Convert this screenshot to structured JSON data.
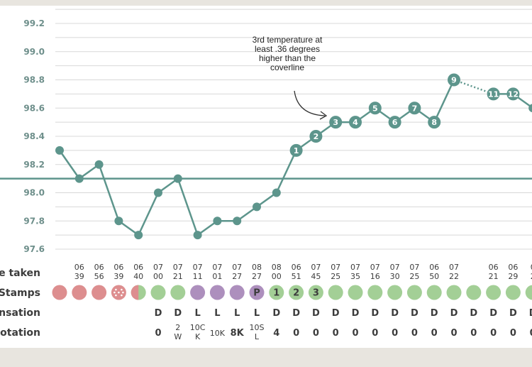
{
  "chart_data": {
    "type": "line",
    "ylim": [
      97.5,
      99.3
    ],
    "yticks": [
      "97.6",
      "97.8",
      "98.0",
      "98.2",
      "98.4",
      "98.6",
      "98.8",
      "99.0",
      "99.2"
    ],
    "coverline": 98.1,
    "points": [
      {
        "y": 98.3,
        "label": ""
      },
      {
        "y": 98.1,
        "label": ""
      },
      {
        "y": 98.2,
        "label": ""
      },
      {
        "y": 97.8,
        "label": ""
      },
      {
        "y": 97.7,
        "label": ""
      },
      {
        "y": 98.0,
        "label": ""
      },
      {
        "y": 98.1,
        "label": ""
      },
      {
        "y": 97.7,
        "label": ""
      },
      {
        "y": 97.8,
        "label": ""
      },
      {
        "y": 97.8,
        "label": ""
      },
      {
        "y": 97.9,
        "label": ""
      },
      {
        "y": 98.0,
        "label": ""
      },
      {
        "y": 98.3,
        "label": "1"
      },
      {
        "y": 98.4,
        "label": "2"
      },
      {
        "y": 98.5,
        "label": "3"
      },
      {
        "y": 98.5,
        "label": "4"
      },
      {
        "y": 98.6,
        "label": "5"
      },
      {
        "y": 98.5,
        "label": "6"
      },
      {
        "y": 98.6,
        "label": "7"
      },
      {
        "y": 98.5,
        "label": "8"
      },
      {
        "y": 98.8,
        "label": "9"
      },
      {
        "y": null,
        "label": ""
      },
      {
        "y": 98.7,
        "label": "11"
      },
      {
        "y": 98.7,
        "label": "12"
      },
      {
        "y": 98.6,
        "label": ""
      }
    ],
    "annotation": [
      "3rd temperature at",
      "least .36 degrees",
      "higher than the",
      "coverline"
    ]
  },
  "rows": {
    "time_label": "e taken",
    "stamps_label": "Stamps",
    "sensation_label": "nsation",
    "notation_label": "otation",
    "times": [
      [
        "",
        ""
      ],
      [
        "06",
        "39"
      ],
      [
        "06",
        "56"
      ],
      [
        "06",
        "39"
      ],
      [
        "06",
        "40"
      ],
      [
        "07",
        "00"
      ],
      [
        "07",
        "21"
      ],
      [
        "07",
        "11"
      ],
      [
        "07",
        "01"
      ],
      [
        "07",
        "27"
      ],
      [
        "08",
        "27"
      ],
      [
        "08",
        "00"
      ],
      [
        "06",
        "51"
      ],
      [
        "07",
        "45"
      ],
      [
        "07",
        "25"
      ],
      [
        "07",
        "35"
      ],
      [
        "07",
        "16"
      ],
      [
        "07",
        "30"
      ],
      [
        "07",
        "25"
      ],
      [
        "06",
        "50"
      ],
      [
        "07",
        "22"
      ],
      [
        "",
        ""
      ],
      [
        "06",
        "21"
      ],
      [
        "06",
        "29"
      ],
      [
        "0",
        "2"
      ]
    ],
    "stamps": [
      {
        "type": "red",
        "text": ""
      },
      {
        "type": "red",
        "text": ""
      },
      {
        "type": "red",
        "text": ""
      },
      {
        "type": "dots",
        "text": ""
      },
      {
        "type": "half",
        "text": ""
      },
      {
        "type": "green",
        "text": ""
      },
      {
        "type": "green",
        "text": ""
      },
      {
        "type": "purple",
        "text": ""
      },
      {
        "type": "purple",
        "text": ""
      },
      {
        "type": "purple",
        "text": ""
      },
      {
        "type": "purple",
        "text": "P"
      },
      {
        "type": "green",
        "text": "1"
      },
      {
        "type": "green",
        "text": "2"
      },
      {
        "type": "green",
        "text": "3"
      },
      {
        "type": "green",
        "text": ""
      },
      {
        "type": "green",
        "text": ""
      },
      {
        "type": "green",
        "text": ""
      },
      {
        "type": "green",
        "text": ""
      },
      {
        "type": "green",
        "text": ""
      },
      {
        "type": "green",
        "text": ""
      },
      {
        "type": "green",
        "text": ""
      },
      {
        "type": "green",
        "text": ""
      },
      {
        "type": "green",
        "text": ""
      },
      {
        "type": "green",
        "text": ""
      },
      {
        "type": "green",
        "text": ""
      }
    ],
    "sensation": [
      "",
      "",
      "",
      "",
      "",
      "D",
      "D",
      "L",
      "L",
      "L",
      "L",
      "D",
      "D",
      "D",
      "D",
      "D",
      "D",
      "D",
      "D",
      "D",
      "D",
      "D",
      "D",
      "D",
      "D"
    ],
    "notation": [
      [
        ""
      ],
      [
        ""
      ],
      [
        ""
      ],
      [
        ""
      ],
      [
        ""
      ],
      [
        "0"
      ],
      [
        "2",
        "W"
      ],
      [
        "10C",
        "K"
      ],
      [
        "10K"
      ],
      [
        "8K"
      ],
      [
        "10S",
        "L"
      ],
      [
        "4"
      ],
      [
        "0"
      ],
      [
        "0"
      ],
      [
        "0"
      ],
      [
        "0"
      ],
      [
        "0"
      ],
      [
        "0"
      ],
      [
        "0"
      ],
      [
        "0"
      ],
      [
        "0"
      ],
      [
        "0"
      ],
      [
        "0"
      ],
      [
        "0"
      ],
      [
        "0"
      ]
    ]
  },
  "colors": {
    "line": "#5d958c",
    "grid": "#d8d8d8",
    "red": "#dd8e8f",
    "green": "#a3cf96",
    "purple": "#ad8fbd"
  }
}
